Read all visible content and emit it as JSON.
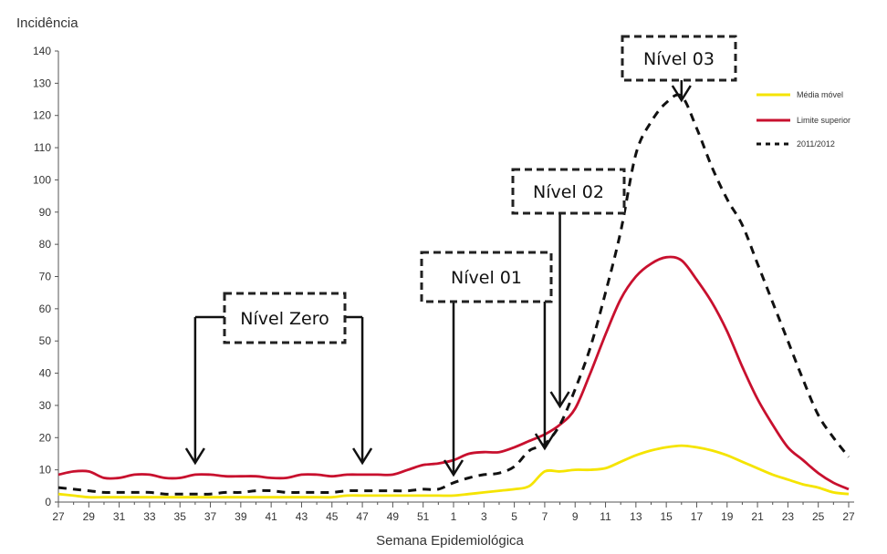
{
  "chart_data": {
    "type": "line",
    "ylabel": "Incidência",
    "xlabel": "Semana Epidemiológica",
    "ylim": [
      0,
      140
    ],
    "yticks": [
      0,
      10,
      20,
      30,
      40,
      50,
      60,
      70,
      80,
      90,
      100,
      110,
      120,
      130,
      140
    ],
    "x": [
      27,
      28,
      29,
      30,
      31,
      32,
      33,
      34,
      35,
      36,
      37,
      38,
      39,
      40,
      41,
      42,
      43,
      44,
      45,
      46,
      47,
      48,
      49,
      50,
      51,
      52,
      1,
      2,
      3,
      4,
      5,
      6,
      7,
      8,
      9,
      10,
      11,
      12,
      13,
      14,
      15,
      16,
      17,
      18,
      19,
      20,
      21,
      22,
      23,
      24,
      25,
      26,
      27
    ],
    "xtick_labels": [
      "27",
      "29",
      "31",
      "33",
      "35",
      "37",
      "39",
      "41",
      "43",
      "45",
      "47",
      "49",
      "51",
      "1",
      "3",
      "5",
      "7",
      "9",
      "11",
      "13",
      "15",
      "17",
      "19",
      "21",
      "23",
      "25",
      "27"
    ],
    "series": [
      {
        "name": "Média móvel",
        "color": "#f5e400",
        "style": "solid",
        "values": [
          2.5,
          2,
          1.5,
          1.5,
          1.5,
          1.5,
          1.5,
          1.5,
          1.5,
          1.5,
          1.5,
          1.5,
          1.5,
          1.5,
          1.5,
          1.5,
          1.5,
          1.5,
          1.5,
          2,
          2,
          2,
          2,
          2,
          2,
          2,
          2,
          2.5,
          3,
          3.5,
          4,
          5,
          9.5,
          9.5,
          10,
          10,
          10.5,
          12.5,
          14.5,
          16,
          17,
          17.5,
          17,
          16,
          14.5,
          12.5,
          10.5,
          8.5,
          7,
          5.5,
          4.5,
          3,
          2.5
        ]
      },
      {
        "name": "Limite superior",
        "color": "#c8102e",
        "style": "solid",
        "values": [
          8.5,
          9.5,
          9.5,
          7.5,
          7.5,
          8.5,
          8.5,
          7.5,
          7.5,
          8.5,
          8.5,
          8,
          8,
          8,
          7.5,
          7.5,
          8.5,
          8.5,
          8,
          8.5,
          8.5,
          8.5,
          8.5,
          10,
          11.5,
          12,
          13,
          15,
          15.5,
          15.5,
          17,
          19,
          21,
          24,
          29,
          40,
          52,
          63,
          70,
          74,
          76,
          75,
          69,
          62,
          53,
          42,
          32,
          24,
          17,
          13,
          9,
          6,
          4
        ]
      },
      {
        "name": "2011/2012",
        "color": "#111111",
        "style": "dashed",
        "values": [
          4.5,
          4,
          3.5,
          3,
          3,
          3,
          3,
          2.5,
          2.5,
          2.5,
          2.5,
          3,
          3,
          3.5,
          3.5,
          3,
          3,
          3,
          3,
          3.5,
          3.5,
          3.5,
          3.5,
          3.5,
          4,
          4,
          6,
          7.5,
          8.5,
          9,
          11,
          16,
          18,
          24,
          35,
          48,
          65,
          84,
          108,
          118,
          124,
          126,
          116,
          104,
          94,
          86,
          74,
          62,
          50,
          38,
          27,
          20,
          14
        ]
      }
    ],
    "legend": {
      "position": "top-right"
    },
    "annotations": [
      {
        "label": "Nível Zero",
        "target_weeks": [
          "36",
          "47"
        ]
      },
      {
        "label": "Nível 01",
        "target_weeks": [
          "1",
          "7"
        ]
      },
      {
        "label": "Nível 02",
        "target_weeks": [
          "8"
        ]
      },
      {
        "label": "Nível 03",
        "target_weeks": [
          "16"
        ]
      }
    ]
  }
}
